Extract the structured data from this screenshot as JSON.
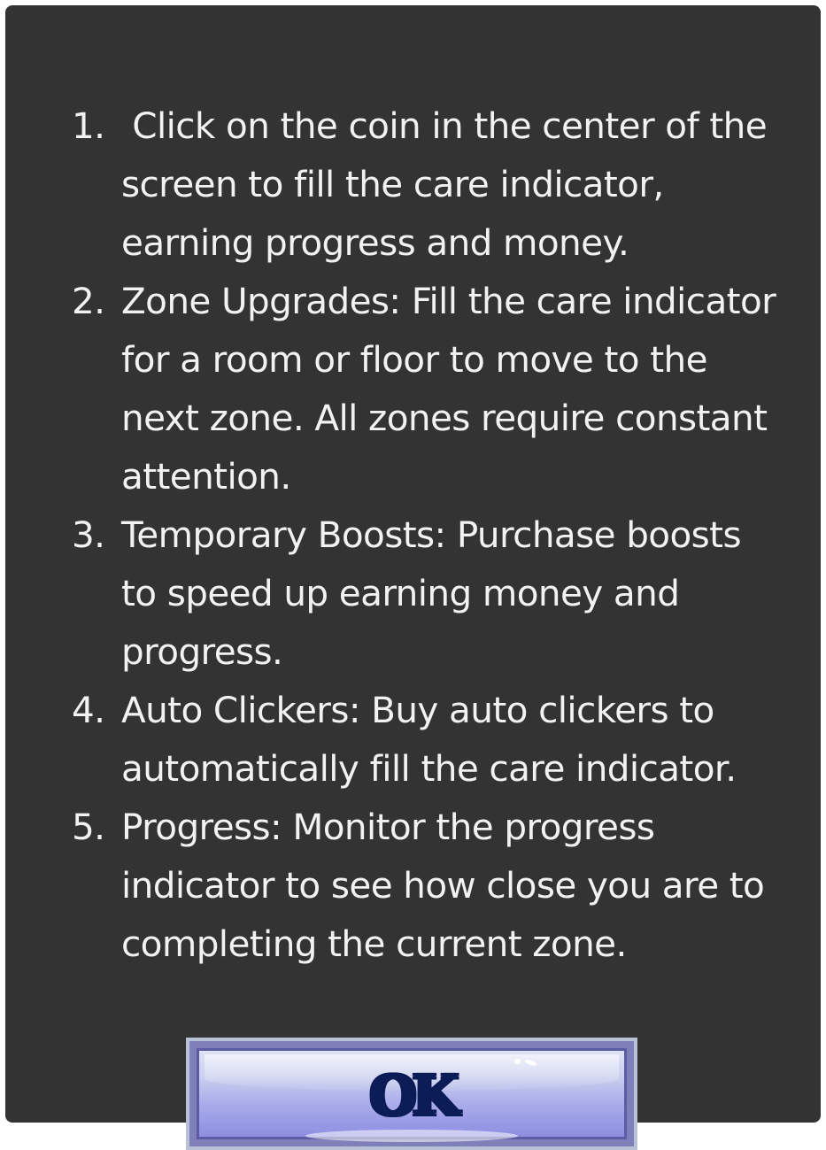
{
  "instructions": [
    {
      "number": "1.",
      "text": " Click on the coin in the center of the screen to fill the care indicator, earning progress and money."
    },
    {
      "number": "2.",
      "text": "Zone Upgrades: Fill the care indicator for a room or floor to move to the next zone. All zones require constant attention."
    },
    {
      "number": "3.",
      "text": "Temporary Boosts: Purchase boosts to speed up earning money and progress."
    },
    {
      "number": "4.",
      "text": "Auto Clickers: Buy auto clickers to automatically fill the care indicator."
    },
    {
      "number": "5.",
      "text": "Progress: Monitor the progress indicator to see how close you are to completing the current zone."
    }
  ],
  "ok_button": {
    "label": "OK"
  },
  "colors": {
    "panel_background": "#333333",
    "text": "#f2f2f2",
    "button_fill": "#a9acea",
    "button_label": "#0c1c56"
  }
}
